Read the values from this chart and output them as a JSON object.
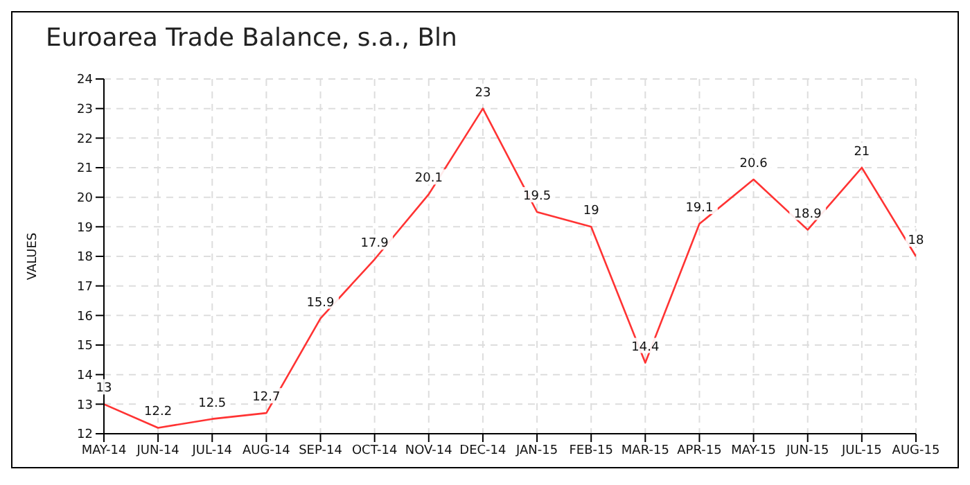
{
  "chart_data": {
    "type": "line",
    "title": "Euroarea Trade Balance, s.a., Bln",
    "ylabel": "VALUES",
    "categories": [
      "MAY-14",
      "JUN-14",
      "JUL-14",
      "AUG-14",
      "SEP-14",
      "OCT-14",
      "NOV-14",
      "DEC-14",
      "JAN-15",
      "FEB-15",
      "MAR-15",
      "APR-15",
      "MAY-15",
      "JUN-15",
      "JUL-15",
      "AUG-15"
    ],
    "series": [
      {
        "color": "#ff3333",
        "values": [
          13,
          12.2,
          12.5,
          12.7,
          15.9,
          17.9,
          20.1,
          23,
          19.5,
          19,
          14.4,
          19.1,
          20.6,
          18.9,
          21,
          18
        ]
      }
    ],
    "ylim": [
      12,
      24
    ],
    "yticks": [
      12,
      13,
      14,
      15,
      16,
      17,
      18,
      19,
      20,
      21,
      22,
      23,
      24
    ],
    "grid": true,
    "data_labels": true,
    "marker": "none",
    "line_style": "solid",
    "legend": false
  }
}
